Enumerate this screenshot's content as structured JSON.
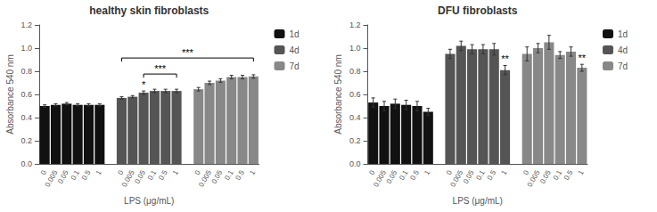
{
  "chart_data": [
    {
      "type": "bar",
      "title": "healthy skin fibroblasts",
      "xlabel": "LPS (μg/mL)",
      "ylabel": "Absorbance 540 nm",
      "categories": [
        "0",
        "0.005",
        "0.05",
        "0.1",
        "0.5",
        "1"
      ],
      "series": [
        {
          "name": "1d",
          "color": "#111111",
          "values": [
            0.5,
            0.51,
            0.52,
            0.51,
            0.51,
            0.51
          ],
          "errors": [
            0.01,
            0.01,
            0.01,
            0.01,
            0.01,
            0.01
          ]
        },
        {
          "name": "4d",
          "color": "#555555",
          "values": [
            0.57,
            0.58,
            0.615,
            0.63,
            0.63,
            0.63
          ],
          "errors": [
            0.01,
            0.01,
            0.015,
            0.015,
            0.015,
            0.015
          ]
        },
        {
          "name": "7d",
          "color": "#888888",
          "values": [
            0.645,
            0.7,
            0.72,
            0.75,
            0.75,
            0.755
          ],
          "errors": [
            0.015,
            0.015,
            0.015,
            0.015,
            0.015,
            0.015
          ]
        }
      ],
      "ylim": [
        0,
        1.2
      ],
      "yticks": [
        {
          "value": 0,
          "label": "0.0"
        },
        0.2,
        0.4,
        0.6,
        0.8,
        {
          "value": 1,
          "label": "1.0"
        },
        1.2
      ],
      "grid": false,
      "legend": "right",
      "annotations": [
        {
          "text": "*",
          "at": {
            "series": "4d",
            "category": "0.05"
          }
        },
        {
          "text": "***",
          "from": {
            "series": "4d",
            "category": "0.05"
          },
          "to": {
            "series": "4d",
            "category": "1"
          }
        },
        {
          "text": "***",
          "from": {
            "series": "4d",
            "category": "0"
          },
          "to": {
            "series": "7d",
            "category": "1"
          }
        }
      ]
    },
    {
      "type": "bar",
      "title": "DFU fibroblasts",
      "xlabel": "LPS (μg/mL)",
      "ylabel": "Absorbance 540 nm",
      "categories": [
        "0",
        "0.005",
        "0.05",
        "0.1",
        "0.5",
        "1"
      ],
      "series": [
        {
          "name": "1d",
          "color": "#111111",
          "values": [
            0.53,
            0.5,
            0.52,
            0.51,
            0.5,
            0.45
          ],
          "errors": [
            0.04,
            0.04,
            0.04,
            0.04,
            0.04,
            0.03
          ]
        },
        {
          "name": "4d",
          "color": "#555555",
          "values": [
            0.95,
            1.02,
            0.99,
            0.99,
            0.99,
            0.81
          ],
          "errors": [
            0.04,
            0.04,
            0.04,
            0.04,
            0.05,
            0.04
          ]
        },
        {
          "name": "7d",
          "color": "#888888",
          "values": [
            0.95,
            1.0,
            1.05,
            0.94,
            0.97,
            0.83
          ],
          "errors": [
            0.06,
            0.04,
            0.06,
            0.03,
            0.04,
            0.03
          ]
        }
      ],
      "ylim": [
        0,
        1.2
      ],
      "yticks": [
        {
          "value": 0,
          "label": "0.0"
        },
        0.2,
        0.4,
        0.6,
        0.8,
        {
          "value": 1,
          "label": "1.0"
        },
        1.2
      ],
      "grid": false,
      "legend": "right",
      "annotations": [
        {
          "text": "**",
          "at": {
            "series": "4d",
            "category": "1"
          }
        },
        {
          "text": "**",
          "at": {
            "series": "7d",
            "category": "1"
          }
        }
      ]
    }
  ]
}
